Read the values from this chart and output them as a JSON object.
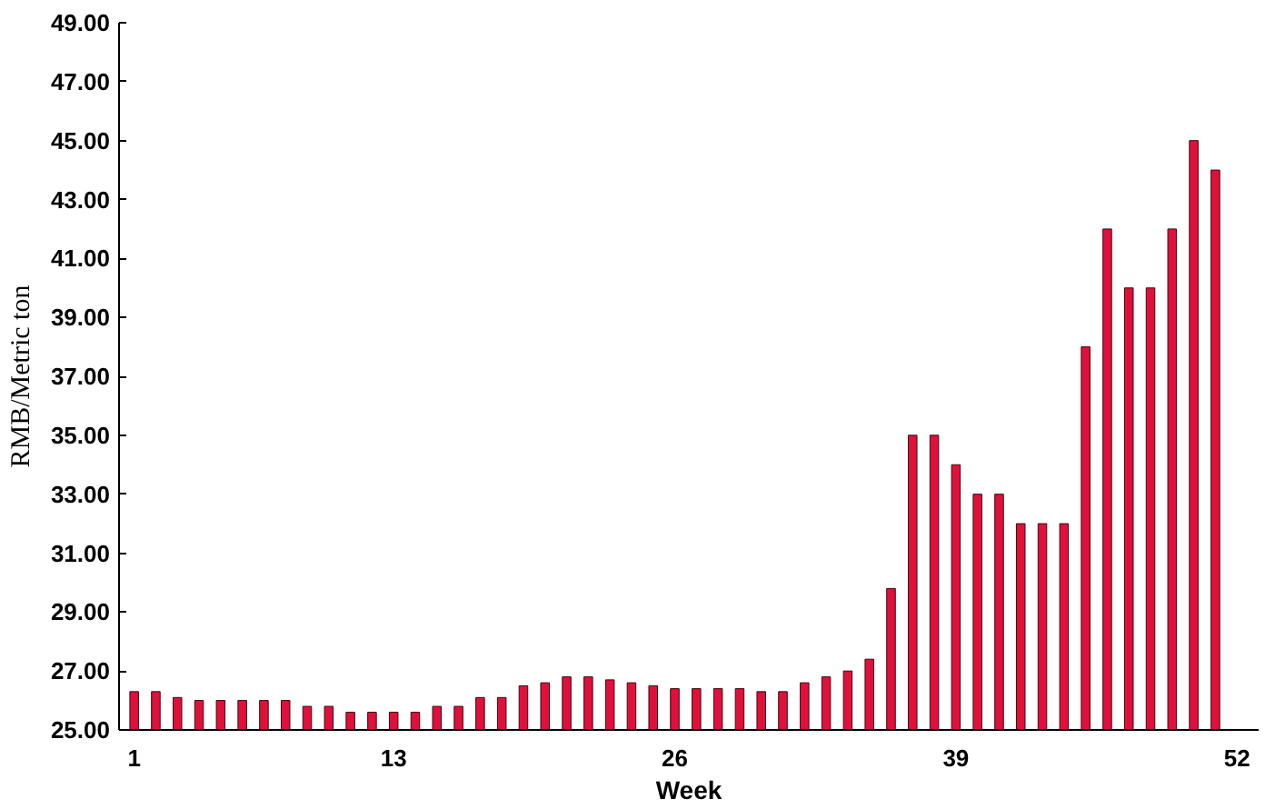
{
  "chart_data": {
    "type": "bar",
    "xlabel": "Week",
    "ylabel": "RMB/Metric ton",
    "x": [
      1,
      2,
      3,
      4,
      5,
      6,
      7,
      8,
      9,
      10,
      11,
      12,
      13,
      14,
      15,
      16,
      17,
      18,
      19,
      20,
      21,
      22,
      23,
      24,
      25,
      26,
      27,
      28,
      29,
      30,
      31,
      32,
      33,
      34,
      35,
      36,
      37,
      38,
      39,
      40,
      41,
      42,
      43,
      44,
      45,
      46,
      47,
      48,
      49,
      50,
      51
    ],
    "values": [
      26.3,
      26.3,
      26.1,
      26,
      26,
      26,
      26,
      26,
      25.8,
      25.8,
      25.6,
      25.6,
      25.6,
      25.6,
      25.8,
      25.8,
      26.1,
      26.1,
      26.5,
      26.6,
      26.8,
      26.8,
      26.7,
      26.6,
      26.5,
      26.4,
      26.4,
      26.4,
      26.4,
      26.3,
      26.3,
      26.6,
      26.8,
      27,
      27.4,
      29.8,
      35,
      35,
      34,
      33,
      33,
      32,
      32,
      32,
      38,
      42,
      40,
      40,
      42,
      45,
      44
    ],
    "color": "#e0103a",
    "xlim": [
      0.3,
      53
    ],
    "xticks": [
      1,
      13,
      26,
      39,
      52
    ],
    "ylim": [
      25,
      49
    ],
    "yticks": [
      {
        "value": 25,
        "label": "25.00"
      },
      {
        "value": 27,
        "label": "27.00"
      },
      {
        "value": 29,
        "label": "29.00"
      },
      {
        "value": 31,
        "label": "31.00"
      },
      {
        "value": 33,
        "label": "33.00"
      },
      {
        "value": 35,
        "label": "35.00"
      },
      {
        "value": 37,
        "label": "37.00"
      },
      {
        "value": 39,
        "label": "39.00"
      },
      {
        "value": 41,
        "label": "41.00"
      },
      {
        "value": 43,
        "label": "43.00"
      },
      {
        "value": 45,
        "label": "45.00"
      },
      {
        "value": 47,
        "label": "47.00"
      },
      {
        "value": 49,
        "label": "49.00"
      }
    ],
    "grid": false
  }
}
